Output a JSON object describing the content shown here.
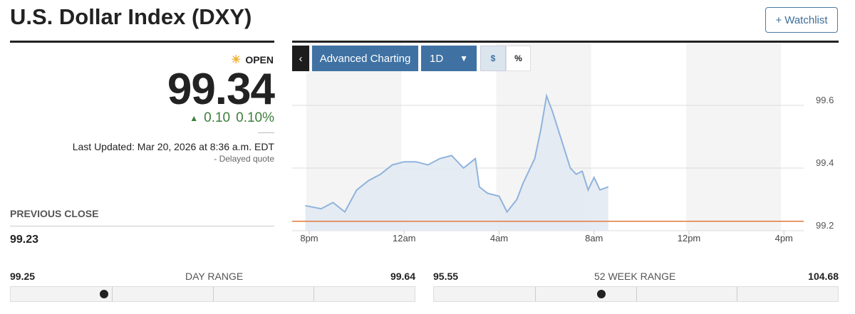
{
  "header": {
    "title": "U.S. Dollar Index (DXY)",
    "watchlist_label": "Watchlist",
    "watchlist_icon": "plus-icon"
  },
  "quote": {
    "status": "OPEN",
    "status_icon": "sun-icon",
    "price": "99.34",
    "change": "0.10",
    "change_pct": "0.10%",
    "change_direction": "up",
    "last_updated": "Last Updated: Mar 20, 2026 at 8:36 a.m. EDT",
    "delayed": "-  Delayed quote",
    "up_color": "#3d7d3d"
  },
  "previous_close": {
    "label": "PREVIOUS CLOSE",
    "value": "99.23"
  },
  "toolbar": {
    "back_icon": "chevron-left-icon",
    "advanced": "Advanced Charting",
    "period": "1D",
    "dollar": "$",
    "percent": "%",
    "active": "$"
  },
  "day_range": {
    "label": "DAY RANGE",
    "low": "99.25",
    "high": "99.64",
    "current": 99.34
  },
  "week52_range": {
    "label": "52 WEEK RANGE",
    "low": "95.55",
    "high": "104.68",
    "current": 99.34
  },
  "chart_data": {
    "type": "area",
    "x_ticks": [
      "8pm",
      "12am",
      "4am",
      "8am",
      "12pm",
      "4pm"
    ],
    "y_ticks": [
      "99.6",
      "99.4",
      "99.2"
    ],
    "ylim": [
      99.2,
      99.6
    ],
    "previous_close": 99.23,
    "line_color": "#8fb3dd",
    "fill_color": "#e3eaf2",
    "reference_color": "#e07a3a",
    "x": [
      "7:50pm",
      "8:30pm",
      "9:00pm",
      "9:30pm",
      "10:00pm",
      "10:30pm",
      "11:00pm",
      "11:30pm",
      "12:00am",
      "12:30am",
      "1:00am",
      "1:30am",
      "2:00am",
      "2:30am",
      "3:00am",
      "3:10am",
      "3:30am",
      "4:00am",
      "4:20am",
      "4:45am",
      "5:00am",
      "5:30am",
      "5:45am",
      "6:00am",
      "6:15am",
      "6:30am",
      "6:45am",
      "7:00am",
      "7:15am",
      "7:30am",
      "7:45am",
      "8:00am",
      "8:15am",
      "8:36am"
    ],
    "values": [
      99.28,
      99.27,
      99.29,
      99.26,
      99.33,
      99.36,
      99.38,
      99.41,
      99.42,
      99.42,
      99.41,
      99.43,
      99.44,
      99.4,
      99.43,
      99.34,
      99.32,
      99.31,
      99.26,
      99.3,
      99.35,
      99.43,
      99.52,
      99.63,
      99.58,
      99.52,
      99.46,
      99.4,
      99.38,
      99.39,
      99.33,
      99.37,
      99.33,
      99.34
    ]
  }
}
